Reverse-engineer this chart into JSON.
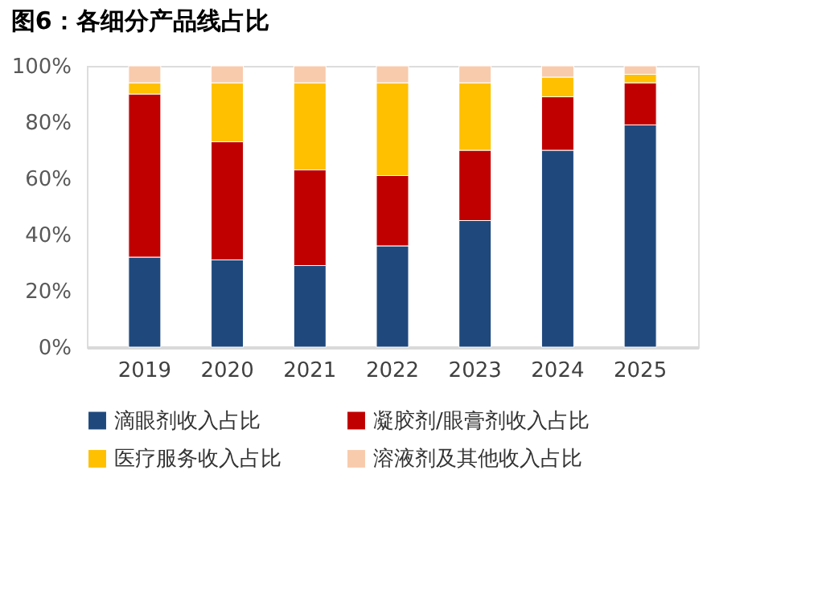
{
  "chart_data": {
    "type": "bar",
    "stacked": true,
    "title": "图6：各细分产品线占比",
    "categories": [
      "2019",
      "2020",
      "2021",
      "2022",
      "2023",
      "2024",
      "2025"
    ],
    "series": [
      {
        "name": "滴眼剂收入占比",
        "color": "#1f497d",
        "values": [
          32,
          31,
          29,
          36,
          45,
          70,
          79
        ]
      },
      {
        "name": "凝胶剂/眼膏剂收入占比",
        "color": "#c00000",
        "values": [
          58,
          42,
          34,
          25,
          25,
          19,
          15
        ]
      },
      {
        "name": "医疗服务收入占比",
        "color": "#ffc000",
        "values": [
          4,
          21,
          31,
          33,
          24,
          7,
          3
        ]
      },
      {
        "name": "溶液剂及其他收入占比",
        "color": "#f8cbad",
        "values": [
          6,
          6,
          6,
          6,
          6,
          4,
          3
        ]
      }
    ],
    "ylim": [
      0,
      100
    ],
    "yticks": [
      {
        "value": 0,
        "label": "0%"
      },
      {
        "value": 20,
        "label": "20%"
      },
      {
        "value": 40,
        "label": "40%"
      },
      {
        "value": 60,
        "label": "60%"
      },
      {
        "value": 80,
        "label": "80%"
      },
      {
        "value": 100,
        "label": "100%"
      }
    ],
    "grid": false,
    "legend": "bottom"
  }
}
